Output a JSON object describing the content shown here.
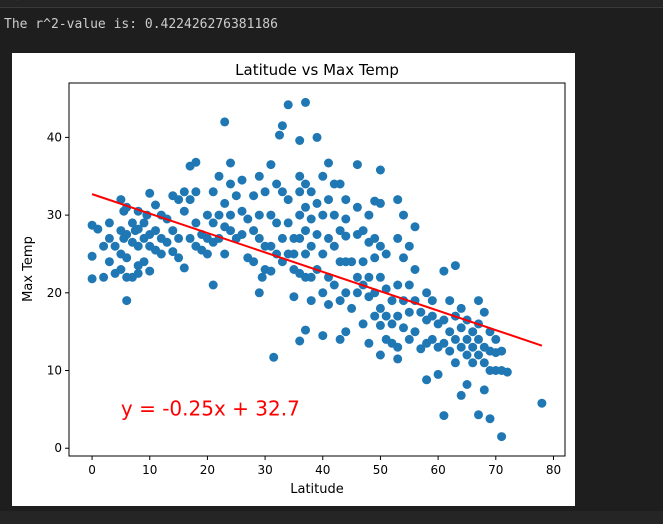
{
  "output": {
    "r2_text": "The r^2-value is: 0.422426276381186"
  },
  "chart_data": {
    "type": "scatter",
    "title": "Latitude vs Max Temp",
    "xlabel": "Latitude",
    "ylabel": "Max Temp",
    "xlim": [
      -4,
      82
    ],
    "ylim": [
      -1,
      47
    ],
    "xticks": [
      0,
      10,
      20,
      30,
      40,
      50,
      60,
      70,
      80
    ],
    "yticks": [
      0,
      10,
      20,
      30,
      40
    ],
    "grid": false,
    "point_color": "#1f77b4",
    "line_color": "#ff0000",
    "regression": {
      "slope": -0.25,
      "intercept": 32.7,
      "x_range": [
        0,
        78
      ],
      "equation": "y = -0.25x + 32.7",
      "equation_anchor": [
        5,
        4.2
      ]
    },
    "points": [
      [
        0,
        28.7
      ],
      [
        0,
        24.7
      ],
      [
        0,
        21.8
      ],
      [
        1,
        28.2
      ],
      [
        2,
        26
      ],
      [
        2,
        22
      ],
      [
        3,
        29
      ],
      [
        3,
        24
      ],
      [
        3,
        27
      ],
      [
        4,
        22.5
      ],
      [
        4,
        26
      ],
      [
        5,
        32
      ],
      [
        5,
        28
      ],
      [
        5,
        25
      ],
      [
        5,
        23
      ],
      [
        5.5,
        30.5
      ],
      [
        5.5,
        27
      ],
      [
        6,
        31
      ],
      [
        6,
        27.5
      ],
      [
        6,
        24.5
      ],
      [
        6,
        22
      ],
      [
        6,
        19
      ],
      [
        7,
        29
      ],
      [
        7,
        26.5
      ],
      [
        7,
        22
      ],
      [
        7.5,
        28
      ],
      [
        8,
        30.5
      ],
      [
        8,
        28.2
      ],
      [
        8,
        26
      ],
      [
        8,
        23.5
      ],
      [
        8,
        22.5
      ],
      [
        9,
        29
      ],
      [
        9,
        27
      ],
      [
        9,
        24
      ],
      [
        9.5,
        30
      ],
      [
        10,
        32.8
      ],
      [
        10,
        27.5
      ],
      [
        10,
        26
      ],
      [
        10,
        22.8
      ],
      [
        11,
        31.3
      ],
      [
        11,
        28
      ],
      [
        11,
        25.5
      ],
      [
        12,
        30
      ],
      [
        12,
        27
      ],
      [
        12,
        25
      ],
      [
        13,
        29.5
      ],
      [
        13,
        26.5
      ],
      [
        14,
        32.5
      ],
      [
        14,
        28
      ],
      [
        14,
        25.3
      ],
      [
        15,
        32
      ],
      [
        15,
        27
      ],
      [
        15,
        24.5
      ],
      [
        16,
        33
      ],
      [
        16,
        30.5
      ],
      [
        16,
        23.2
      ],
      [
        17,
        36.3
      ],
      [
        17,
        32
      ],
      [
        17,
        27
      ],
      [
        18,
        36.8
      ],
      [
        18,
        33
      ],
      [
        18,
        29
      ],
      [
        18,
        26
      ],
      [
        19,
        27.5
      ],
      [
        19,
        25.5
      ],
      [
        20,
        30
      ],
      [
        20,
        27
      ],
      [
        20,
        25
      ],
      [
        21,
        33
      ],
      [
        21,
        29
      ],
      [
        21,
        26.5
      ],
      [
        21,
        21
      ],
      [
        22,
        35
      ],
      [
        22,
        30
      ],
      [
        22,
        27
      ],
      [
        23,
        42
      ],
      [
        23,
        31.5
      ],
      [
        23,
        28.5
      ],
      [
        23,
        25
      ],
      [
        24,
        36.7
      ],
      [
        24,
        34
      ],
      [
        24,
        30
      ],
      [
        24,
        28
      ],
      [
        25,
        32.5
      ],
      [
        25,
        27
      ],
      [
        26,
        34.5
      ],
      [
        26,
        30.5
      ],
      [
        26,
        27.5
      ],
      [
        27,
        29.5
      ],
      [
        27,
        24.5
      ],
      [
        28,
        32.5
      ],
      [
        28,
        28
      ],
      [
        28,
        24
      ],
      [
        29,
        35
      ],
      [
        29,
        30
      ],
      [
        29,
        27
      ],
      [
        29,
        20
      ],
      [
        29.5,
        22
      ],
      [
        30,
        33
      ],
      [
        30,
        26
      ],
      [
        30,
        23
      ],
      [
        31,
        36.5
      ],
      [
        31,
        30
      ],
      [
        31,
        26
      ],
      [
        31,
        22.8
      ],
      [
        31.5,
        11.7
      ],
      [
        32,
        34
      ],
      [
        32,
        29
      ],
      [
        32,
        25
      ],
      [
        32.5,
        40.3
      ],
      [
        33,
        41.5
      ],
      [
        33,
        33
      ],
      [
        33,
        27
      ],
      [
        33,
        24
      ],
      [
        34,
        44.2
      ],
      [
        34,
        32
      ],
      [
        34,
        29
      ],
      [
        34,
        25
      ],
      [
        35,
        27
      ],
      [
        35,
        25
      ],
      [
        35,
        23
      ],
      [
        35,
        19.5
      ],
      [
        36,
        39.6
      ],
      [
        36,
        35
      ],
      [
        36,
        33
      ],
      [
        36,
        30
      ],
      [
        36,
        27
      ],
      [
        36,
        22.5
      ],
      [
        36,
        13.8
      ],
      [
        37,
        44.5
      ],
      [
        37,
        34
      ],
      [
        37,
        31
      ],
      [
        37,
        28
      ],
      [
        37,
        25
      ],
      [
        37,
        22
      ],
      [
        37,
        15.2
      ],
      [
        38,
        33
      ],
      [
        38,
        29.5
      ],
      [
        38,
        26
      ],
      [
        38,
        22
      ],
      [
        38,
        19
      ],
      [
        39,
        40
      ],
      [
        39,
        31.5
      ],
      [
        39,
        27.5
      ],
      [
        39,
        23
      ],
      [
        40,
        35
      ],
      [
        40,
        30
      ],
      [
        40,
        25
      ],
      [
        40,
        20
      ],
      [
        40,
        14.5
      ],
      [
        41,
        36.7
      ],
      [
        41,
        32
      ],
      [
        41,
        27
      ],
      [
        41,
        22
      ],
      [
        41,
        18.5
      ],
      [
        42,
        34
      ],
      [
        42,
        30
      ],
      [
        42,
        26
      ],
      [
        42,
        21
      ],
      [
        43,
        34
      ],
      [
        43,
        28
      ],
      [
        43,
        24
      ],
      [
        43,
        19
      ],
      [
        43,
        14
      ],
      [
        44,
        32
      ],
      [
        44,
        29.5
      ],
      [
        44,
        27.3
      ],
      [
        44,
        24
      ],
      [
        44,
        20
      ],
      [
        44,
        15
      ],
      [
        45,
        24
      ],
      [
        45,
        18
      ],
      [
        46,
        36.5
      ],
      [
        46,
        31
      ],
      [
        46,
        27.5
      ],
      [
        46,
        22
      ],
      [
        46,
        20
      ],
      [
        47,
        28
      ],
      [
        47,
        24
      ],
      [
        47,
        21
      ],
      [
        47,
        16
      ],
      [
        48,
        30
      ],
      [
        48,
        26.5
      ],
      [
        48,
        22
      ],
      [
        48,
        19.5
      ],
      [
        48,
        13.5
      ],
      [
        49,
        31.8
      ],
      [
        49,
        27
      ],
      [
        49,
        24.5
      ],
      [
        49,
        20
      ],
      [
        49,
        17
      ],
      [
        50,
        35.8
      ],
      [
        50,
        31.5
      ],
      [
        50,
        26
      ],
      [
        50,
        22
      ],
      [
        50,
        18
      ],
      [
        50,
        15.8
      ],
      [
        50,
        12
      ],
      [
        51,
        25
      ],
      [
        51,
        20.5
      ],
      [
        51,
        17
      ],
      [
        51,
        14
      ],
      [
        52,
        19
      ],
      [
        52,
        16
      ],
      [
        52,
        13.5
      ],
      [
        53,
        32
      ],
      [
        53,
        27
      ],
      [
        53,
        21
      ],
      [
        53,
        17
      ],
      [
        53,
        13
      ],
      [
        53,
        11.5
      ],
      [
        54,
        30
      ],
      [
        54,
        24.5
      ],
      [
        54,
        19
      ],
      [
        54,
        15.5
      ],
      [
        55,
        26
      ],
      [
        55,
        21
      ],
      [
        55,
        17.5
      ],
      [
        55,
        14
      ],
      [
        56,
        28.5
      ],
      [
        56,
        23
      ],
      [
        56,
        19
      ],
      [
        56,
        15
      ],
      [
        57,
        17.5
      ],
      [
        57,
        12.8
      ],
      [
        58,
        20
      ],
      [
        58,
        16.5
      ],
      [
        58,
        13.5
      ],
      [
        58,
        8.8
      ],
      [
        59,
        19
      ],
      [
        59,
        17
      ],
      [
        59,
        14
      ],
      [
        60,
        16
      ],
      [
        60,
        13
      ],
      [
        60,
        9.5
      ],
      [
        61,
        22.8
      ],
      [
        61,
        16.5
      ],
      [
        61,
        13.5
      ],
      [
        61,
        4.2
      ],
      [
        62,
        19
      ],
      [
        62,
        15
      ],
      [
        62,
        12.5
      ],
      [
        63,
        23.5
      ],
      [
        63,
        17
      ],
      [
        63,
        14
      ],
      [
        63,
        11
      ],
      [
        64,
        18
      ],
      [
        64,
        15.5
      ],
      [
        64,
        13
      ],
      [
        64,
        6.8
      ],
      [
        65,
        16.5
      ],
      [
        65,
        14
      ],
      [
        65,
        12
      ],
      [
        65,
        8.2
      ],
      [
        66,
        15
      ],
      [
        66,
        13
      ],
      [
        66,
        11
      ],
      [
        67,
        19
      ],
      [
        67,
        16
      ],
      [
        67,
        14
      ],
      [
        67,
        12
      ],
      [
        67,
        4.3
      ],
      [
        68,
        17.5
      ],
      [
        68,
        13
      ],
      [
        68,
        11
      ],
      [
        68,
        7.5
      ],
      [
        69,
        15
      ],
      [
        69,
        12.5
      ],
      [
        69,
        10
      ],
      [
        69,
        3.8
      ],
      [
        70,
        14
      ],
      [
        70,
        12.3
      ],
      [
        70,
        10
      ],
      [
        71,
        12.5
      ],
      [
        71,
        10
      ],
      [
        71,
        1.5
      ],
      [
        72,
        9.8
      ],
      [
        78,
        5.8
      ]
    ]
  }
}
